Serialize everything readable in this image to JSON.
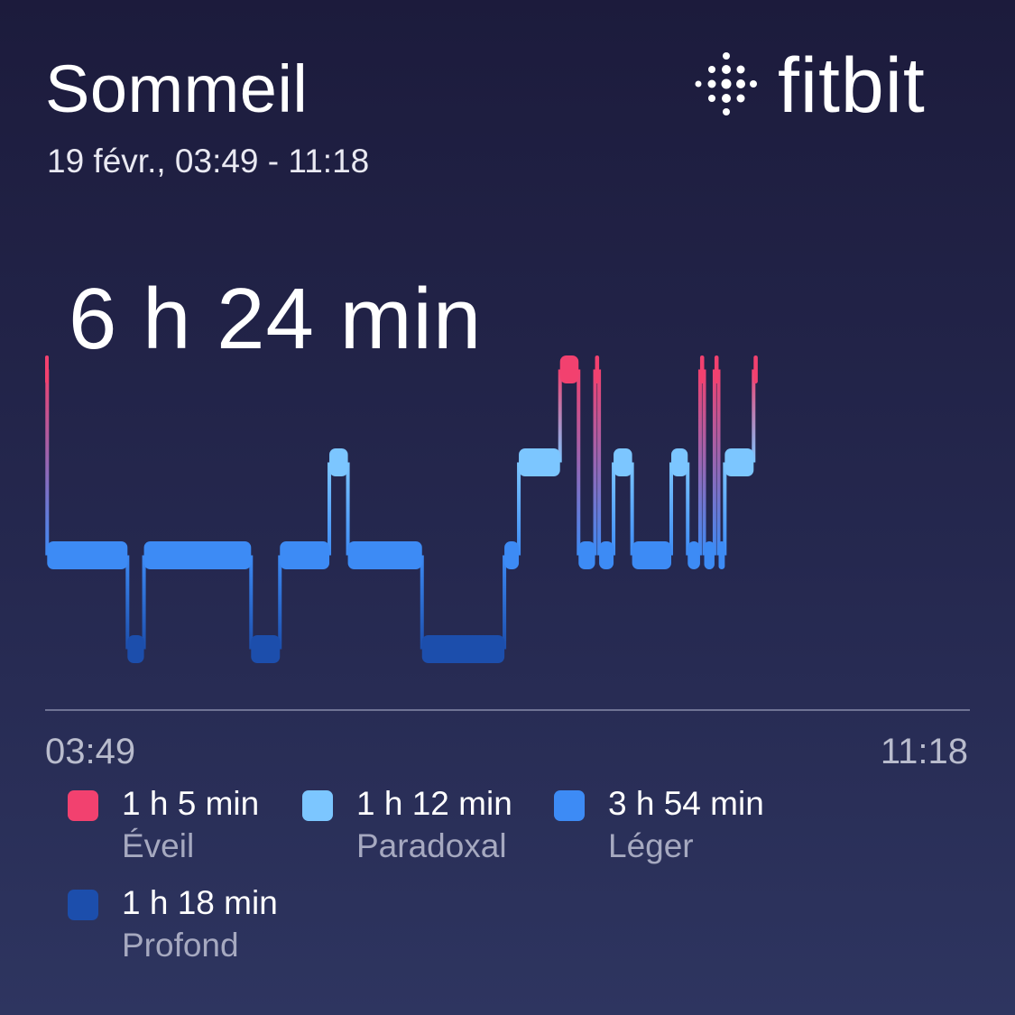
{
  "header": {
    "title": "Sommeil",
    "subtitle": "19 févr., 03:49 - 11:18",
    "brand": "fitbit"
  },
  "summary": {
    "total": "6 h 24 min"
  },
  "colors": {
    "awake": "#f2416f",
    "rem": "#7cc6ff",
    "light": "#3d8bf5",
    "deep": "#1c4eac",
    "background_top": "#1c1b3c",
    "background_bottom": "#2e3560"
  },
  "chart_data": {
    "type": "area",
    "title": "Sommeil",
    "x_start": "03:49",
    "x_end": "11:18",
    "stage_order": [
      "awake",
      "rem",
      "light",
      "deep"
    ],
    "segments": [
      {
        "stage": "awake",
        "start": "03:49",
        "end": "03:50"
      },
      {
        "stage": "light",
        "start": "03:50",
        "end": "04:29"
      },
      {
        "stage": "deep",
        "start": "04:29",
        "end": "04:37"
      },
      {
        "stage": "light",
        "start": "04:37",
        "end": "05:29"
      },
      {
        "stage": "deep",
        "start": "05:29",
        "end": "05:43"
      },
      {
        "stage": "light",
        "start": "05:43",
        "end": "06:07"
      },
      {
        "stage": "rem",
        "start": "06:07",
        "end": "06:16"
      },
      {
        "stage": "light",
        "start": "06:16",
        "end": "06:52"
      },
      {
        "stage": "deep",
        "start": "06:52",
        "end": "07:32"
      },
      {
        "stage": "light",
        "start": "07:32",
        "end": "07:39"
      },
      {
        "stage": "rem",
        "start": "07:39",
        "end": "07:59"
      },
      {
        "stage": "awake",
        "start": "07:59",
        "end": "08:08"
      },
      {
        "stage": "light",
        "start": "08:08",
        "end": "08:16"
      },
      {
        "stage": "awake",
        "start": "08:16",
        "end": "08:18"
      },
      {
        "stage": "light",
        "start": "08:18",
        "end": "08:25"
      },
      {
        "stage": "rem",
        "start": "08:25",
        "end": "08:34"
      },
      {
        "stage": "light",
        "start": "08:34",
        "end": "08:53"
      },
      {
        "stage": "rem",
        "start": "08:53",
        "end": "09:01"
      },
      {
        "stage": "light",
        "start": "09:01",
        "end": "09:07"
      },
      {
        "stage": "awake",
        "start": "09:07",
        "end": "09:09"
      },
      {
        "stage": "light",
        "start": "09:09",
        "end": "09:14"
      },
      {
        "stage": "awake",
        "start": "09:14",
        "end": "09:16"
      },
      {
        "stage": "light",
        "start": "09:16",
        "end": "09:19"
      },
      {
        "stage": "rem",
        "start": "09:19",
        "end": "09:33"
      },
      {
        "stage": "awake",
        "start": "09:33",
        "end": "09:35"
      }
    ],
    "legend": [
      {
        "key": "awake",
        "value": "1 h 5 min",
        "label": "Éveil"
      },
      {
        "key": "rem",
        "value": "1 h 12 min",
        "label": "Paradoxal"
      },
      {
        "key": "light",
        "value": "3 h 54 min",
        "label": "Léger"
      },
      {
        "key": "deep",
        "value": "1 h 18 min",
        "label": "Profond"
      }
    ]
  }
}
